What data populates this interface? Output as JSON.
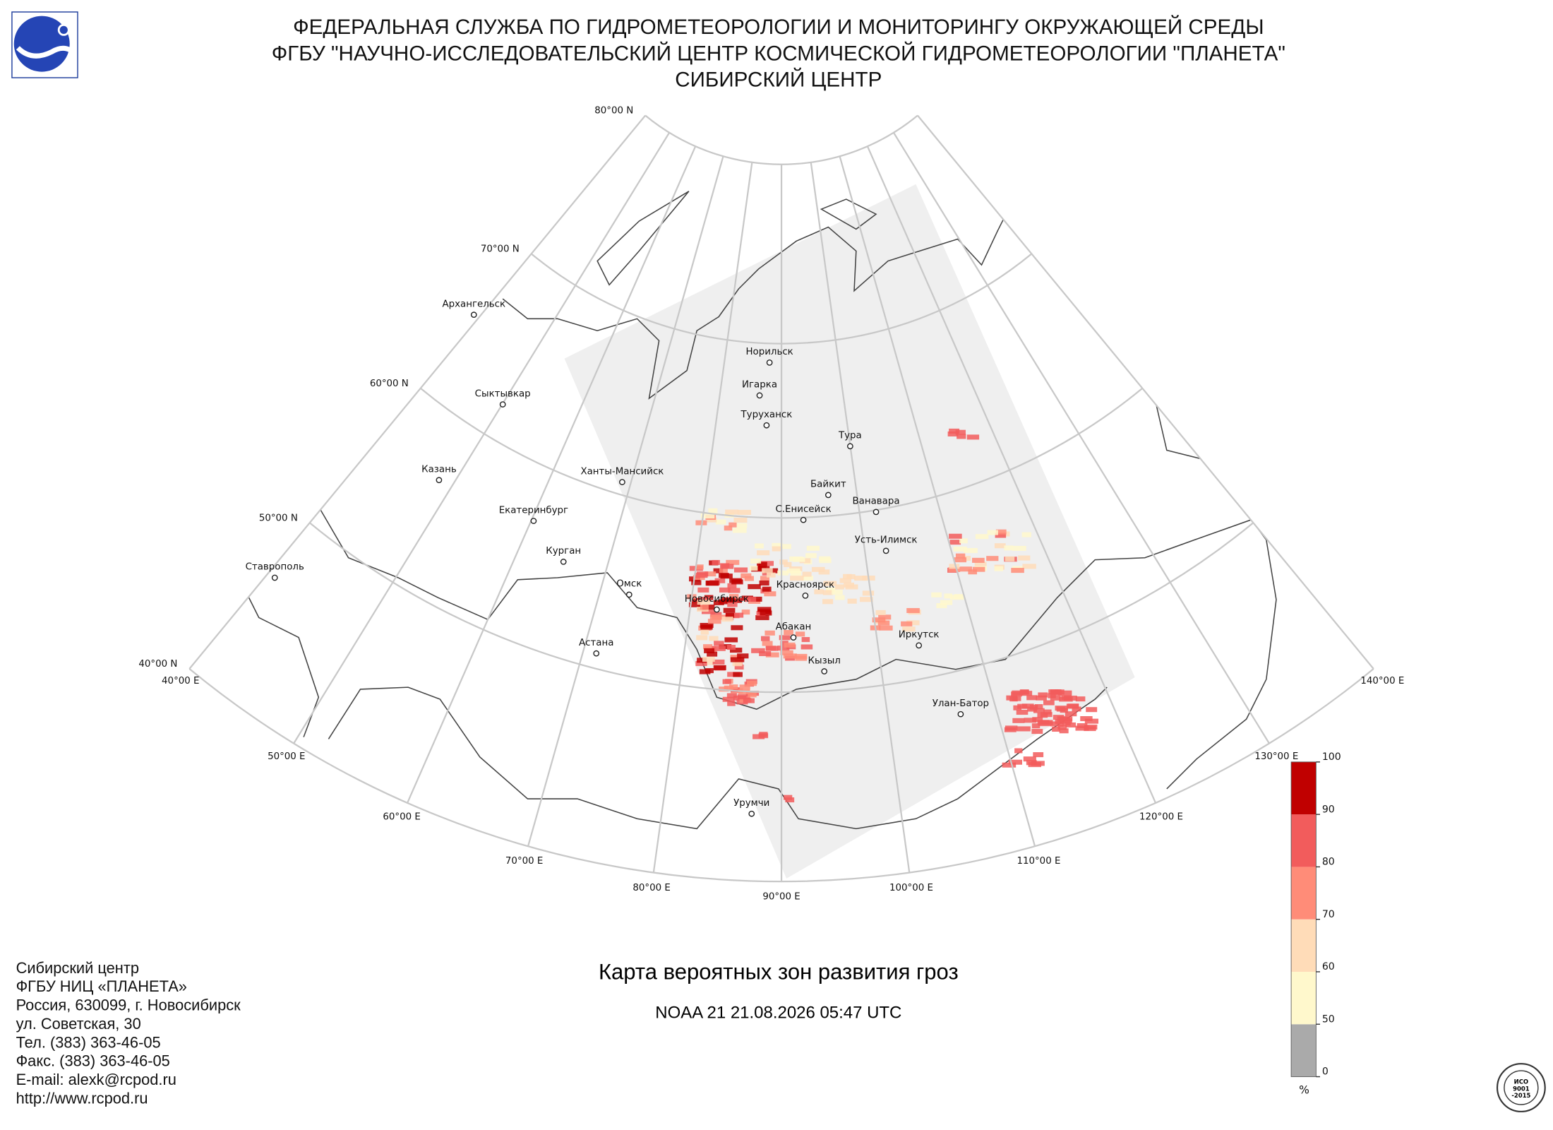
{
  "header": [
    "ФЕДЕРАЛЬНАЯ СЛУЖБА ПО ГИДРОМЕТЕОРОЛОГИИ И МОНИТОРИНГУ ОКРУЖАЮЩЕЙ СРЕДЫ",
    "ФГБУ \"НАУЧНО-ИССЛЕДОВАТЕЛЬСКИЙ ЦЕНТР КОСМИЧЕСКОЙ ГИДРОМЕТЕОРОЛОГИИ \"ПЛАНЕТА\"",
    "СИБИРСКИЙ ЦЕНТР"
  ],
  "graticule": {
    "lat_labels": [
      "80°00 N",
      "70°00 N",
      "60°00 N",
      "50°00 N",
      "40°00 N"
    ],
    "lon_labels": [
      "40°00 E",
      "50°00 E",
      "60°00 E",
      "70°00 E",
      "80°00 E",
      "90°00 E",
      "100°00 E",
      "110°00 E",
      "120°00 E",
      "130°00 E",
      "140°00 E"
    ]
  },
  "cities": [
    "Архангельск",
    "Сыктывкар",
    "Казань",
    "Екатеринбург",
    "Курган",
    "Ставрополь",
    "Ханты-Мансийск",
    "Омск",
    "Астана",
    "Новосибирск",
    "Норильск",
    "Игарка",
    "Туруханск",
    "Тура",
    "Байкит",
    "Ванавара",
    "С.Енисейск",
    "Усть-Илимск",
    "Красноярск",
    "Абакан",
    "Кызыл",
    "Иркутск",
    "Улан-Батор",
    "Урумчи"
  ],
  "legend": {
    "ticks": [
      0,
      50,
      60,
      70,
      80,
      90,
      100
    ],
    "colors": [
      "#aaaaaa",
      "#fff8cc",
      "#ffdcb8",
      "#ff8c78",
      "#f25c5c",
      "#c00000"
    ],
    "unit": "%"
  },
  "title": "Карта вероятных зон развития гроз",
  "subtitle": "NOAA 21 21.08.2026  05:47 UTC",
  "footer": [
    "Сибирский центр",
    "ФГБУ НИЦ «ПЛАНЕТА»",
    "Россия, 630099, г. Новосибирск",
    "ул. Советская, 30",
    "Тел. (383) 363-46-05",
    "Факс. (383) 363-46-05",
    "E-mail: alexk@rcpod.ru",
    "http://www.rcpod.ru"
  ],
  "stamp": [
    "ИСО",
    "9001",
    "-2015"
  ]
}
